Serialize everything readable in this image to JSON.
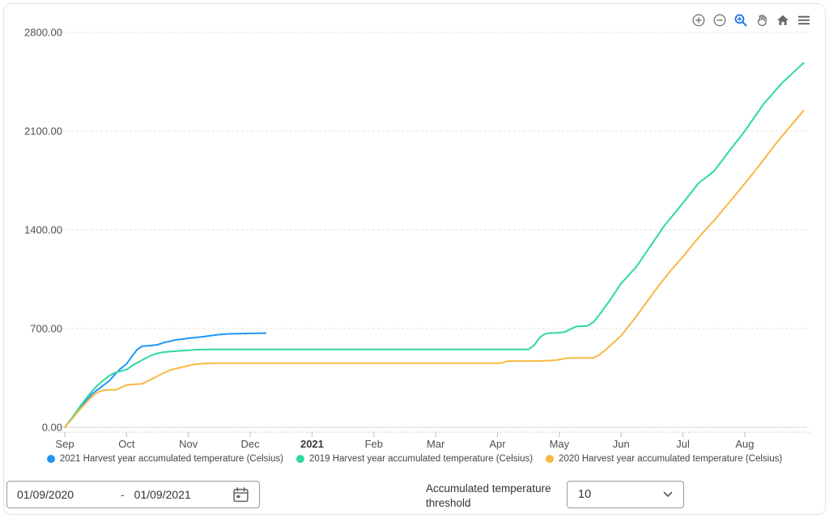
{
  "toolbar": {
    "icons": [
      {
        "name": "zoom-in"
      },
      {
        "name": "zoom-out"
      },
      {
        "name": "box-zoom",
        "active": true,
        "active_color": "#1b74e8"
      },
      {
        "name": "pan"
      },
      {
        "name": "home"
      },
      {
        "name": "menu"
      }
    ]
  },
  "chart_data": {
    "type": "line",
    "title": "",
    "xlabel": "",
    "ylabel": "",
    "grid": "horizontal-dashed",
    "legend_position": "bottom",
    "x_unit": "months from Sep 1 2020",
    "x_range": [
      0,
      12.1
    ],
    "ylim": [
      0,
      2800
    ],
    "x_axis": {
      "tick_labels": [
        "Sep",
        "Oct",
        "Nov",
        "Dec",
        "2021",
        "Feb",
        "Mar",
        "Apr",
        "May",
        "Jun",
        "Jul",
        "Aug"
      ],
      "bold_label": "2021"
    },
    "y_axis": {
      "tick_labels": [
        "0.00",
        "700.00",
        "1400.00",
        "2100.00",
        "2800.00"
      ],
      "tick_values": [
        0,
        700,
        1400,
        2100,
        2800
      ]
    },
    "series": [
      {
        "name": "2021 Harvest year accumulated temperature (Celsius)",
        "color": "#2196f3",
        "points": [
          [
            0,
            0
          ],
          [
            0.15,
            80
          ],
          [
            0.3,
            165
          ],
          [
            0.45,
            240
          ],
          [
            0.6,
            290
          ],
          [
            0.72,
            330
          ],
          [
            0.8,
            370
          ],
          [
            0.9,
            415
          ],
          [
            1.0,
            450
          ],
          [
            1.08,
            500
          ],
          [
            1.17,
            550
          ],
          [
            1.25,
            575
          ],
          [
            1.4,
            580
          ],
          [
            1.5,
            585
          ],
          [
            1.6,
            600
          ],
          [
            1.7,
            610
          ],
          [
            1.8,
            620
          ],
          [
            1.95,
            628
          ],
          [
            2.0,
            632
          ],
          [
            2.15,
            638
          ],
          [
            2.3,
            646
          ],
          [
            2.45,
            655
          ],
          [
            2.6,
            661
          ],
          [
            2.8,
            664
          ],
          [
            3.0,
            666
          ],
          [
            3.25,
            668
          ]
        ]
      },
      {
        "name": "2019 Harvest year accumulated temperature (Celsius)",
        "color": "#2ed9a4",
        "points": [
          [
            0,
            0
          ],
          [
            0.12,
            70
          ],
          [
            0.25,
            150
          ],
          [
            0.4,
            235
          ],
          [
            0.5,
            285
          ],
          [
            0.6,
            325
          ],
          [
            0.7,
            360
          ],
          [
            0.8,
            385
          ],
          [
            0.9,
            398
          ],
          [
            1.0,
            410
          ],
          [
            1.1,
            440
          ],
          [
            1.2,
            465
          ],
          [
            1.3,
            488
          ],
          [
            1.4,
            510
          ],
          [
            1.5,
            525
          ],
          [
            1.6,
            533
          ],
          [
            1.7,
            537
          ],
          [
            1.85,
            542
          ],
          [
            2.0,
            546
          ],
          [
            2.15,
            551
          ],
          [
            2.3,
            552
          ],
          [
            7.5,
            552
          ],
          [
            7.6,
            585
          ],
          [
            7.68,
            635
          ],
          [
            7.75,
            658
          ],
          [
            7.82,
            668
          ],
          [
            8.0,
            671
          ],
          [
            8.1,
            678
          ],
          [
            8.18,
            696
          ],
          [
            8.28,
            716
          ],
          [
            8.45,
            719
          ],
          [
            8.55,
            745
          ],
          [
            8.65,
            800
          ],
          [
            8.8,
            890
          ],
          [
            9.0,
            1020
          ],
          [
            9.25,
            1140
          ],
          [
            9.45,
            1270
          ],
          [
            9.7,
            1430
          ],
          [
            10.0,
            1590
          ],
          [
            10.25,
            1730
          ],
          [
            10.5,
            1815
          ],
          [
            10.75,
            1960
          ],
          [
            11.0,
            2100
          ],
          [
            11.3,
            2290
          ],
          [
            11.6,
            2440
          ],
          [
            11.95,
            2583
          ]
        ]
      },
      {
        "name": "2020 Harvest year accumulated temperature (Celsius)",
        "color": "#f7b843",
        "points": [
          [
            0,
            0
          ],
          [
            0.12,
            60
          ],
          [
            0.25,
            130
          ],
          [
            0.4,
            200
          ],
          [
            0.5,
            240
          ],
          [
            0.58,
            258
          ],
          [
            0.65,
            264
          ],
          [
            0.85,
            268
          ],
          [
            0.92,
            285
          ],
          [
            1.0,
            300
          ],
          [
            1.1,
            304
          ],
          [
            1.25,
            308
          ],
          [
            1.4,
            340
          ],
          [
            1.55,
            375
          ],
          [
            1.7,
            405
          ],
          [
            1.85,
            422
          ],
          [
            2.0,
            437
          ],
          [
            2.1,
            447
          ],
          [
            2.25,
            452
          ],
          [
            2.4,
            455
          ],
          [
            7.0,
            455
          ],
          [
            7.08,
            458
          ],
          [
            7.15,
            468
          ],
          [
            7.25,
            470
          ],
          [
            7.6,
            470
          ],
          [
            7.8,
            473
          ],
          [
            7.95,
            476
          ],
          [
            8.02,
            482
          ],
          [
            8.1,
            490
          ],
          [
            8.2,
            492
          ],
          [
            8.55,
            492
          ],
          [
            8.65,
            515
          ],
          [
            8.75,
            550
          ],
          [
            8.9,
            610
          ],
          [
            9.0,
            650
          ],
          [
            9.2,
            760
          ],
          [
            9.4,
            880
          ],
          [
            9.6,
            1000
          ],
          [
            9.8,
            1110
          ],
          [
            10.0,
            1210
          ],
          [
            10.25,
            1345
          ],
          [
            10.5,
            1465
          ],
          [
            10.75,
            1595
          ],
          [
            11.0,
            1728
          ],
          [
            11.25,
            1865
          ],
          [
            11.5,
            2010
          ],
          [
            11.75,
            2140
          ],
          [
            11.95,
            2245
          ]
        ]
      }
    ]
  },
  "controls": {
    "date_range": {
      "start": "01/09/2020",
      "separator": "-",
      "end": "01/09/2021"
    },
    "threshold": {
      "label": "Accumulated temperature threshold",
      "value": "10"
    }
  }
}
